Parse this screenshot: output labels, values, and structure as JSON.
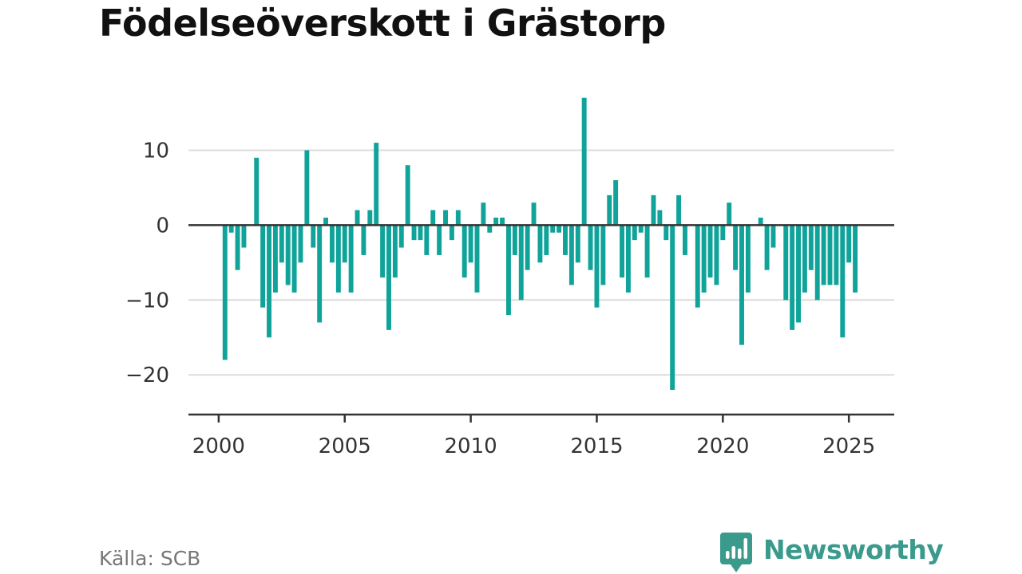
{
  "title": "Födelseöverskott i Grästorp",
  "source": "Källa: SCB",
  "brand": {
    "name": "Newsworthy",
    "color": "#3a9a8c",
    "icon": "newsworthy-logo-icon"
  },
  "chart_data": {
    "type": "bar",
    "title": "Födelseöverskott i Grästorp",
    "bar_color": "#0fa39a",
    "grid": true,
    "xlabel": "",
    "ylabel": "",
    "x_ticks": [
      2000,
      2005,
      2010,
      2015,
      2020,
      2025
    ],
    "y_ticks": [
      -20,
      -10,
      0,
      10
    ],
    "y_tick_labels": [
      "−20",
      "−10",
      "0",
      "10"
    ],
    "xlim": [
      1998.8,
      2026.8
    ],
    "ylim": [
      -25.3,
      17.5
    ],
    "frequency": "quarterly",
    "series": [
      {
        "start": 2000.25,
        "step": 0.25,
        "values": [
          -18,
          -1,
          -6,
          -3,
          0,
          9,
          -11,
          -15,
          -9,
          -5,
          -8,
          -9,
          -5,
          10,
          -3,
          -13,
          1,
          -5,
          -9,
          -5,
          -9,
          2,
          -4,
          2,
          11,
          -7,
          -14,
          -7,
          -3,
          8,
          -2,
          -2,
          -4,
          2,
          -4,
          2,
          -2,
          2,
          -7,
          -5,
          -9,
          3,
          -1,
          1,
          1,
          -12,
          -4,
          -10,
          -6,
          3,
          -5,
          -4,
          -1,
          -1,
          -4,
          -8,
          -5,
          17,
          -6,
          -11,
          -8,
          4,
          6,
          -7,
          -9,
          -2,
          -1,
          -7,
          4,
          2,
          -2,
          -22,
          4,
          -4,
          0,
          -11,
          -9,
          -7,
          -8,
          -2,
          3,
          -6,
          -16,
          -9,
          0,
          1,
          -6,
          -3,
          0,
          -10,
          -14,
          -13,
          -9,
          -6,
          -10,
          -8,
          -8,
          -8,
          -15,
          -5,
          -9
        ]
      }
    ]
  }
}
